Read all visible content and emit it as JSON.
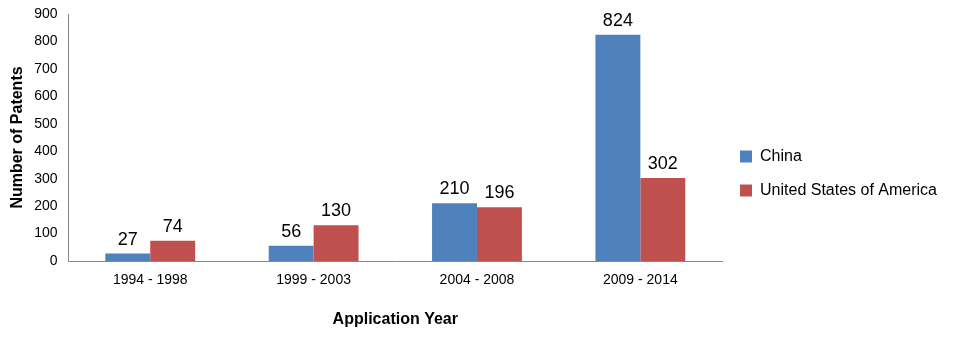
{
  "chart_data": {
    "type": "bar",
    "x_label": "Application Year",
    "y_label": "Number of Patents",
    "categories": [
      "1994 - 1998",
      "1999 - 2003",
      "2004 - 2008",
      "2009 - 2014"
    ],
    "series": [
      {
        "name": "China",
        "color": "#4f81bd",
        "values": [
          27,
          56,
          210,
          824
        ]
      },
      {
        "name": "United States of America",
        "color": "#c0504d",
        "values": [
          74,
          130,
          196,
          302
        ]
      }
    ],
    "ylim": [
      0,
      900
    ],
    "yticks": [
      0,
      100,
      200,
      300,
      400,
      500,
      600,
      700,
      800,
      900
    ],
    "grid": false,
    "legend": "right",
    "data_labels": true
  }
}
